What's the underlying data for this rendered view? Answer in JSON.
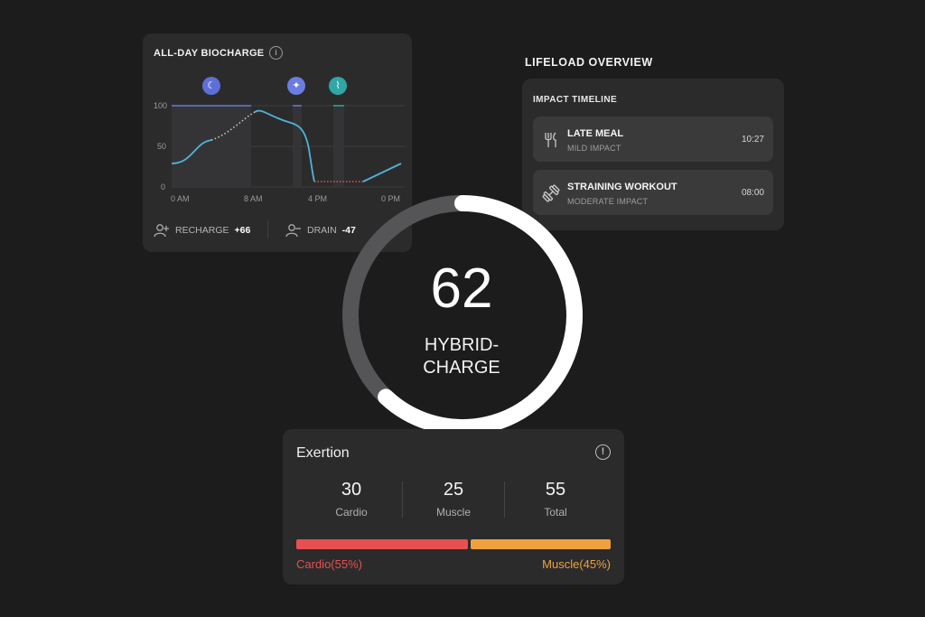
{
  "biocharge": {
    "title": "ALL-DAY BIOCHARGE",
    "y_ticks": [
      "100",
      "50",
      "0"
    ],
    "x_ticks": [
      "0 AM",
      "8 AM",
      "4 PM",
      "0 PM"
    ],
    "event_icons": [
      "moon-icon",
      "sparkle-icon",
      "activity-icon"
    ],
    "recharge_label": "RECHARGE",
    "recharge_value": "+66",
    "drain_label": "DRAIN",
    "drain_value": "-47"
  },
  "lifeload": {
    "title": "LIFELOAD OVERVIEW",
    "timeline_title": "IMPACT TIMELINE",
    "items": [
      {
        "name": "LATE MEAL",
        "impact": "MILD IMPACT",
        "time": "10:27",
        "icon": "fork-knife-icon"
      },
      {
        "name": "STRAINING WORKOUT",
        "impact": "MODERATE IMPACT",
        "time": "08:00",
        "icon": "dumbbell-icon"
      }
    ]
  },
  "hybrid_charge": {
    "value": "62",
    "label_line1": "HYBRID-",
    "label_line2": "CHARGE",
    "progress_fraction": 0.62
  },
  "exertion": {
    "title": "Exertion",
    "metrics": [
      {
        "value": "30",
        "label": "Cardio"
      },
      {
        "value": "25",
        "label": "Muscle"
      },
      {
        "value": "55",
        "label": "Total"
      }
    ],
    "cardio_share": 55,
    "muscle_share": 45,
    "cardio_label": "Cardio(55%)",
    "muscle_label": "Muscle(45%)"
  },
  "colors": {
    "background": "#1c1c1d",
    "card": "#2b2b2c",
    "chart_line": "#4fb3d9",
    "drain_red": "#e05555",
    "cardio_red": "#e8504f",
    "muscle_orange": "#f0a13d",
    "moon_icon": "#5e6fd8",
    "sparkle_icon": "#6a7de0",
    "activity_icon": "#2fa7a5"
  }
}
